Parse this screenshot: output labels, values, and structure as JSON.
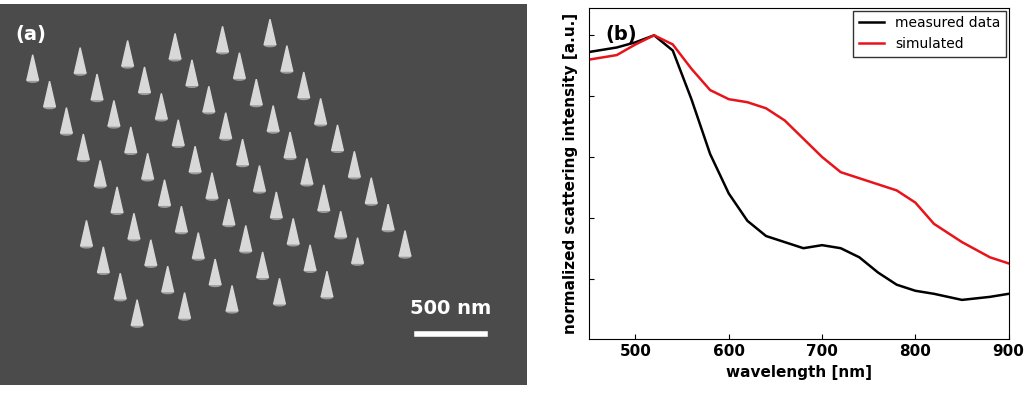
{
  "image_panel": {
    "label": "(a)",
    "scale_bar": "500 nm"
  },
  "chart_data": {
    "type": "line",
    "panel_label": "(b)",
    "x_label": "wavelength [nm]",
    "y_label": "normalized scattering intensity [a.u.]",
    "x": [
      450,
      480,
      500,
      520,
      540,
      560,
      580,
      600,
      620,
      640,
      660,
      680,
      700,
      720,
      740,
      760,
      780,
      800,
      820,
      850,
      880,
      900
    ],
    "series": [
      {
        "name": "measured data",
        "color": "#000000",
        "values": [
          0.945,
          0.96,
          0.977,
          1.0,
          0.95,
          0.79,
          0.61,
          0.48,
          0.39,
          0.34,
          0.32,
          0.3,
          0.31,
          0.3,
          0.27,
          0.22,
          0.18,
          0.16,
          0.15,
          0.13,
          0.14,
          0.15
        ]
      },
      {
        "name": "simulated",
        "color": "#e8141b",
        "values": [
          0.92,
          0.935,
          0.97,
          1.0,
          0.97,
          0.89,
          0.82,
          0.79,
          0.78,
          0.76,
          0.72,
          0.66,
          0.6,
          0.55,
          0.53,
          0.51,
          0.49,
          0.45,
          0.38,
          0.32,
          0.27,
          0.25
        ]
      }
    ],
    "xlim": [
      450,
      900
    ],
    "xticks": [
      500,
      600,
      700,
      800,
      900
    ],
    "ylim": [
      0,
      1.09
    ],
    "yticks": [
      0.2,
      0.4,
      0.6,
      0.8,
      1.0
    ],
    "tick_labels": "x",
    "legend": "upper right"
  }
}
